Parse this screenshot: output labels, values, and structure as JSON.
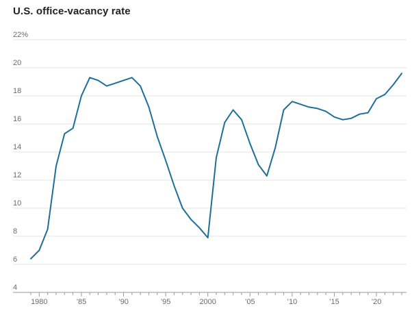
{
  "chart_data": {
    "type": "line",
    "title": "U.S. office-vacancy rate",
    "xlabel": "",
    "ylabel": "",
    "ylim": [
      4,
      22
    ],
    "xlim": [
      1979,
      2023
    ],
    "grid": true,
    "y_ticks": [
      4,
      6,
      8,
      10,
      12,
      14,
      16,
      18,
      20,
      22
    ],
    "y_tick_labels": [
      "4",
      "6",
      "8",
      "10",
      "12",
      "14",
      "16",
      "18",
      "20",
      "22%"
    ],
    "x_ticks": [
      1980,
      1985,
      1990,
      1995,
      2000,
      2005,
      2010,
      2015,
      2020
    ],
    "x_tick_labels": [
      "1980",
      "’85",
      "’90",
      "’95",
      "2000",
      "’05",
      "’10",
      "’15",
      "’20"
    ],
    "color": "#1a6f99",
    "series": [
      {
        "x": [
          1979,
          1980,
          1981,
          1982,
          1983,
          1984,
          1985,
          1986,
          1987,
          1988,
          1989,
          1990,
          1991,
          1992,
          1993,
          1994,
          1995,
          1996,
          1997,
          1998,
          1999,
          2000,
          2001,
          2002,
          2003,
          2004,
          2005,
          2006,
          2007,
          2008,
          2009,
          2010,
          2011,
          2012,
          2013,
          2014,
          2015,
          2016,
          2017,
          2018,
          2019,
          2020,
          2021,
          2022,
          2023
        ],
        "values": [
          6.4,
          7.0,
          8.5,
          13.0,
          15.3,
          15.7,
          18.0,
          19.3,
          19.1,
          18.7,
          18.9,
          19.1,
          19.3,
          18.7,
          17.2,
          15.1,
          13.4,
          11.6,
          10.0,
          9.2,
          8.6,
          7.9,
          13.6,
          16.1,
          17.0,
          16.3,
          14.6,
          13.1,
          12.3,
          14.3,
          17.0,
          17.6,
          17.4,
          17.2,
          17.1,
          16.9,
          16.5,
          16.3,
          16.4,
          16.7,
          16.8,
          17.8,
          18.1,
          18.8,
          19.6
        ]
      }
    ]
  }
}
